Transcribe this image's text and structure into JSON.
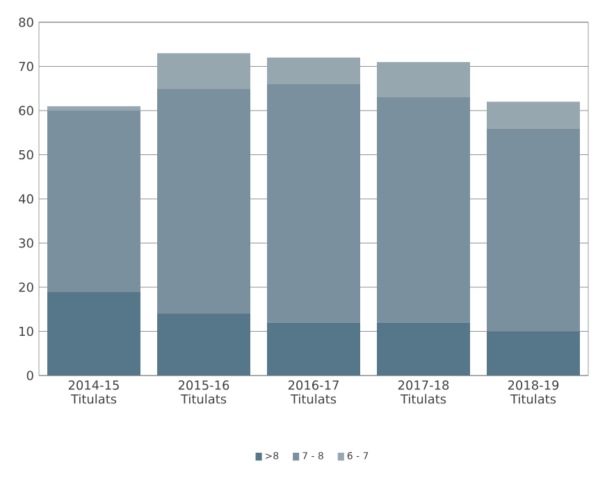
{
  "chart_data": {
    "type": "bar",
    "stacked": true,
    "categories": [
      "2014-15 Titulats",
      "2015-16 Titulats",
      "2016-17 Titulats",
      "2017-18 Titulats",
      "2018-19 Titulats"
    ],
    "series": [
      {
        "name": ">8",
        "color": "#56778a",
        "values": [
          19,
          14,
          12,
          12,
          10
        ]
      },
      {
        "name": "7 - 8",
        "color": "#7b909e",
        "values": [
          41,
          51,
          54,
          51,
          46
        ]
      },
      {
        "name": "6 - 7",
        "color": "#97a7b0",
        "values": [
          1,
          8,
          6,
          8,
          6
        ]
      }
    ],
    "ylim": [
      0,
      80
    ],
    "yticks": [
      0,
      10,
      20,
      30,
      40,
      50,
      60,
      70,
      80
    ],
    "grid": "y",
    "legend": "bottom"
  }
}
